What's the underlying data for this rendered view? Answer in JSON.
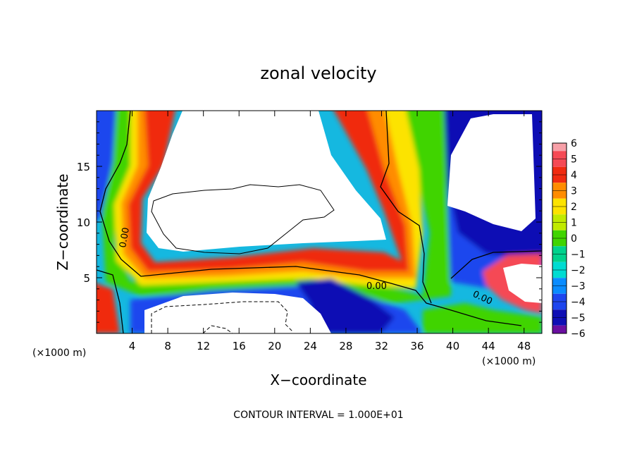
{
  "chart_data": {
    "type": "heatmap",
    "title": "zonal velocity",
    "xlabel": "X−coordinate",
    "ylabel": "Z−coordinate",
    "x_unit": "(×1000 m)",
    "y_unit": "(×1000 m)",
    "xlim": [
      0,
      50
    ],
    "ylim": [
      0,
      20
    ],
    "x_ticks": [
      4,
      8,
      12,
      16,
      20,
      24,
      28,
      32,
      36,
      40,
      44,
      48
    ],
    "y_ticks": [
      5,
      10,
      15
    ],
    "colorbar": {
      "levels": [
        6,
        5,
        4,
        3,
        2,
        1,
        0,
        -1,
        -2,
        -3,
        -4,
        -5,
        -6
      ],
      "labels": [
        "6",
        "5",
        "4",
        "3",
        "2",
        "1",
        "0",
        "−1",
        "−2",
        "−3",
        "−4",
        "−5",
        "−6"
      ],
      "colors": [
        "#f7a0a8",
        "#f54a55",
        "#f02b10",
        "#ff8c00",
        "#fce300",
        "#c0ea00",
        "#40d400",
        "#00d28c",
        "#00dcd2",
        "#0a8cff",
        "#1e46ee",
        "#0f0fb4",
        "#6a0fa0"
      ]
    },
    "contour_labels": [
      "0.00",
      "0.00",
      "0.00"
    ],
    "contour_interval_text": "CONTOUR INTERVAL = 1.000E+01"
  }
}
